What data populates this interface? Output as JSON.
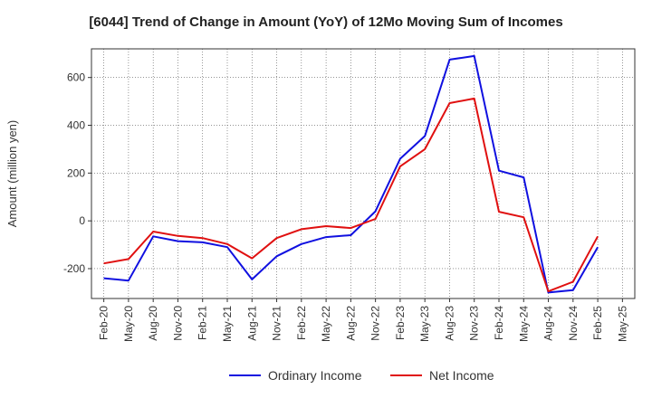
{
  "chart_data": {
    "type": "line",
    "title": "[6044]  Trend of Change in Amount (YoY) of 12Mo Moving Sum of Incomes",
    "xlabel": "",
    "ylabel": "Amount (million yen)",
    "x_ticks": [
      "Feb-20",
      "May-20",
      "Aug-20",
      "Nov-20",
      "Feb-21",
      "May-21",
      "Aug-21",
      "Nov-21",
      "Feb-22",
      "May-22",
      "Aug-22",
      "Nov-22",
      "Feb-23",
      "May-23",
      "Aug-23",
      "Nov-23",
      "Feb-24",
      "May-24",
      "Aug-24",
      "Nov-24",
      "Feb-25",
      "May-25"
    ],
    "y_ticks": [
      -200,
      0,
      200,
      400,
      600
    ],
    "ylim": [
      -325,
      720
    ],
    "grid": true,
    "legend_position": "bottom-center",
    "series": [
      {
        "name": "Ordinary Income",
        "color": "#1010e0",
        "values": [
          -240,
          -250,
          -65,
          -85,
          -90,
          -110,
          -245,
          -148,
          -97,
          -68,
          -60,
          40,
          260,
          355,
          675,
          690,
          210,
          182,
          -300,
          -290,
          -110
        ]
      },
      {
        "name": "Net Income",
        "color": "#e01010",
        "values": [
          -178,
          -160,
          -45,
          -63,
          -72,
          -97,
          -157,
          -72,
          -35,
          -22,
          -30,
          8,
          228,
          300,
          493,
          512,
          38,
          15,
          -295,
          -255,
          -65
        ]
      }
    ]
  }
}
